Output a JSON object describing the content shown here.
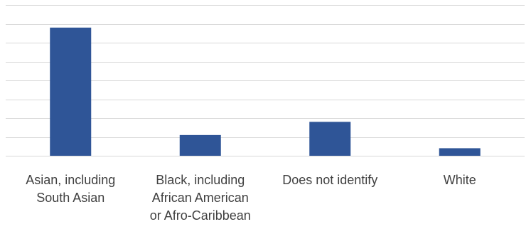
{
  "chart_data": {
    "type": "bar",
    "title": "",
    "xlabel": "",
    "ylabel": "",
    "categories": [
      "Asian, including South Asian",
      "Black, including African American or Afro-Caribbean",
      "Does not identify",
      "White"
    ],
    "category_lines": [
      [
        "Asian, including",
        "South Asian"
      ],
      [
        "Black, including",
        "African American",
        "or Afro-Caribbean"
      ],
      [
        "Does not identify"
      ],
      [
        "White"
      ]
    ],
    "values": [
      6.8,
      1.1,
      1.8,
      0.4
    ],
    "ylim": [
      0,
      8
    ],
    "gridlines": true,
    "y_axis_labels_shown": false,
    "legend": "none",
    "bar_color": "#2f5597",
    "grid_color": "#d9d9d9",
    "label_color": "#404040"
  }
}
